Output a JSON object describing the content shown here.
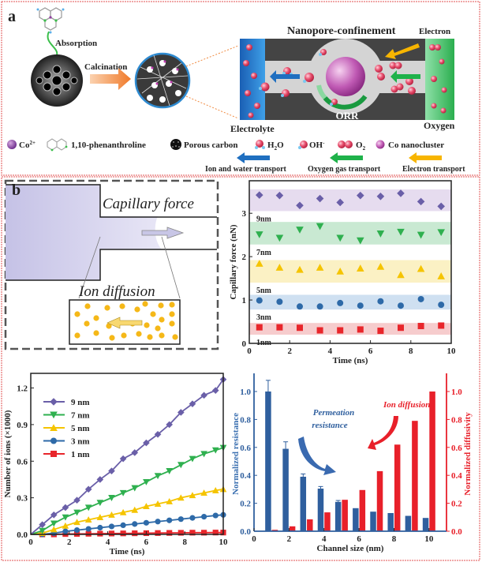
{
  "panel_a": {
    "label": "a",
    "absorption": "Absorption",
    "calcination": "Calcination",
    "title": "Nanopore-confinement",
    "electron": "Electron",
    "electrolyte": "Electrolyte",
    "oxygen": "Oxygen",
    "orr": "ORR",
    "legend": {
      "co": "Co",
      "co_charge": "2+",
      "phen": "1,10-phenanthroline",
      "carbon": "Porous carbon",
      "h2o": "H",
      "h2o_sub": "2",
      "h2o_end": "O",
      "oh": "OH",
      "oh_sup": "-",
      "o2": "O",
      "o2_sub": "2",
      "cluster": "Co nanocluster"
    },
    "transport": [
      {
        "label": "Ion and water transport",
        "color": "#1f6fc0"
      },
      {
        "label": "Oxygen gas transport",
        "color": "#1fb24a"
      },
      {
        "label": "Electron transport",
        "color": "#f7b500"
      }
    ]
  },
  "panel_b": {
    "label": "b",
    "capillary_force": "Capillary force",
    "ion_diffusion": "Ion diffusion"
  },
  "chart_data": [
    {
      "type": "scatter",
      "xlabel": "Time (ns)",
      "ylabel": "Capillary force (nN)",
      "xlim": [
        0,
        10
      ],
      "ylim": [
        0,
        3.75
      ],
      "xticks": [
        0,
        2,
        4,
        6,
        8,
        10
      ],
      "yticks": [
        0,
        1,
        2,
        3
      ],
      "x": [
        0.5,
        1.5,
        2.5,
        3.5,
        4.5,
        5.5,
        6.5,
        7.5,
        8.5,
        9.5
      ],
      "series": [
        {
          "name": "9nm",
          "marker": "diamond",
          "color": "#6a5fa8",
          "band_color": "#e6dcef",
          "band": [
            3.05,
            3.55
          ],
          "values": [
            3.42,
            3.41,
            3.18,
            3.34,
            3.25,
            3.41,
            3.39,
            3.46,
            3.27,
            3.16
          ]
        },
        {
          "name": "7nm",
          "marker": "triangle-down",
          "color": "#2fb04f",
          "band_color": "#c9e9d2",
          "band": [
            2.28,
            2.8
          ],
          "values": [
            2.51,
            2.43,
            2.62,
            2.7,
            2.43,
            2.37,
            2.53,
            2.57,
            2.5,
            2.56
          ]
        },
        {
          "name": "5nm",
          "marker": "triangle-up",
          "color": "#f5c400",
          "band_color": "#fbf1c4",
          "band": [
            1.4,
            1.92
          ],
          "values": [
            1.84,
            1.75,
            1.7,
            1.75,
            1.66,
            1.73,
            1.77,
            1.58,
            1.72,
            1.55
          ]
        },
        {
          "name": "3nm",
          "marker": "circle",
          "color": "#2e6aa8",
          "band_color": "#cfe0f1",
          "band": [
            0.78,
            1.12
          ],
          "values": [
            0.99,
            0.96,
            0.85,
            0.85,
            0.93,
            0.87,
            0.97,
            0.87,
            1.02,
            0.89
          ]
        },
        {
          "name": "1nm",
          "marker": "square",
          "color": "#e8262b",
          "band_color": "#f6cccd",
          "band": [
            0.2,
            0.47
          ],
          "values": [
            0.37,
            0.37,
            0.36,
            0.3,
            0.3,
            0.32,
            0.29,
            0.36,
            0.4,
            0.41
          ]
        }
      ]
    },
    {
      "type": "line",
      "xlabel": "Time (ns)",
      "ylabel": "Number of ions (×1000)",
      "xlim": [
        0,
        10
      ],
      "ylim": [
        0,
        1.32
      ],
      "xticks": [
        0,
        2,
        4,
        6,
        8,
        10
      ],
      "yticks": [
        0.0,
        0.3,
        0.6,
        0.9,
        1.2
      ],
      "ytick_labels": [
        "0.0",
        "0.3",
        "0.6",
        "0.9",
        "1.2"
      ],
      "legend": "top-left",
      "x": [
        0,
        0.6,
        1.2,
        1.8,
        2.4,
        3.0,
        3.6,
        4.2,
        4.8,
        5.4,
        6.0,
        6.6,
        7.2,
        7.8,
        8.4,
        9.0,
        9.6,
        10
      ],
      "series": [
        {
          "name": "9 nm",
          "marker": "diamond",
          "color": "#6a5fa8",
          "values": [
            0,
            0.08,
            0.16,
            0.22,
            0.28,
            0.37,
            0.45,
            0.52,
            0.62,
            0.67,
            0.75,
            0.82,
            0.9,
            1.0,
            1.07,
            1.14,
            1.18,
            1.27
          ]
        },
        {
          "name": "7 nm",
          "marker": "triangle-down",
          "color": "#2fb04f",
          "values": [
            0,
            0.03,
            0.09,
            0.14,
            0.18,
            0.22,
            0.26,
            0.3,
            0.34,
            0.38,
            0.43,
            0.48,
            0.52,
            0.57,
            0.62,
            0.66,
            0.69,
            0.71
          ]
        },
        {
          "name": "5 nm",
          "marker": "triangle-up",
          "color": "#f5c400",
          "values": [
            0,
            0.01,
            0.04,
            0.07,
            0.1,
            0.12,
            0.14,
            0.16,
            0.18,
            0.2,
            0.23,
            0.25,
            0.27,
            0.3,
            0.32,
            0.34,
            0.36,
            0.37
          ]
        },
        {
          "name": "3 nm",
          "marker": "circle",
          "color": "#2e6aa8",
          "values": [
            0,
            0,
            0.01,
            0.025,
            0.035,
            0.045,
            0.055,
            0.065,
            0.075,
            0.085,
            0.095,
            0.105,
            0.115,
            0.125,
            0.135,
            0.145,
            0.155,
            0.16
          ]
        },
        {
          "name": "1 nm",
          "marker": "square",
          "color": "#e8262b",
          "values": [
            0,
            0,
            0,
            0.003,
            0.004,
            0.005,
            0.006,
            0.007,
            0.008,
            0.009,
            0.01,
            0.011,
            0.012,
            0.013,
            0.014,
            0.014,
            0.015,
            0.015
          ]
        }
      ]
    },
    {
      "type": "bar",
      "xlabel": "Channel size (nm)",
      "ylabel_left": "Normalized resistance",
      "ylabel_right": "Normalized diffusivity",
      "xlim": [
        0,
        11
      ],
      "ylim": [
        0,
        1.13
      ],
      "xticks": [
        0,
        2,
        4,
        6,
        8,
        10
      ],
      "yticks": [
        0.0,
        0.2,
        0.4,
        0.6,
        0.8,
        1.0
      ],
      "ytick_labels": [
        "0.0",
        "0.2",
        "0.4",
        "0.6",
        "0.8",
        "1.0"
      ],
      "categories": [
        1,
        2,
        3,
        4,
        5,
        6,
        7,
        8,
        9,
        10
      ],
      "annotations": {
        "permeation_1": "Permeation",
        "permeation_2": "resistance",
        "ion_diffusion": "Ion diffusion"
      },
      "series": [
        {
          "name": "Normalized resistance",
          "axis": "left",
          "color": "#2f5f9e",
          "values": [
            1.0,
            0.59,
            0.39,
            0.305,
            0.21,
            0.165,
            0.14,
            0.13,
            0.11,
            0.095
          ],
          "errors": [
            0.08,
            0.05,
            0.02,
            0.015,
            0.01,
            0,
            0,
            0,
            0,
            0
          ]
        },
        {
          "name": "Normalized diffusivity",
          "axis": "right",
          "color": "#e8202a",
          "values": [
            0.01,
            0.035,
            0.085,
            0.135,
            0.225,
            0.295,
            0.43,
            0.62,
            0.79,
            1.0
          ]
        }
      ]
    }
  ]
}
